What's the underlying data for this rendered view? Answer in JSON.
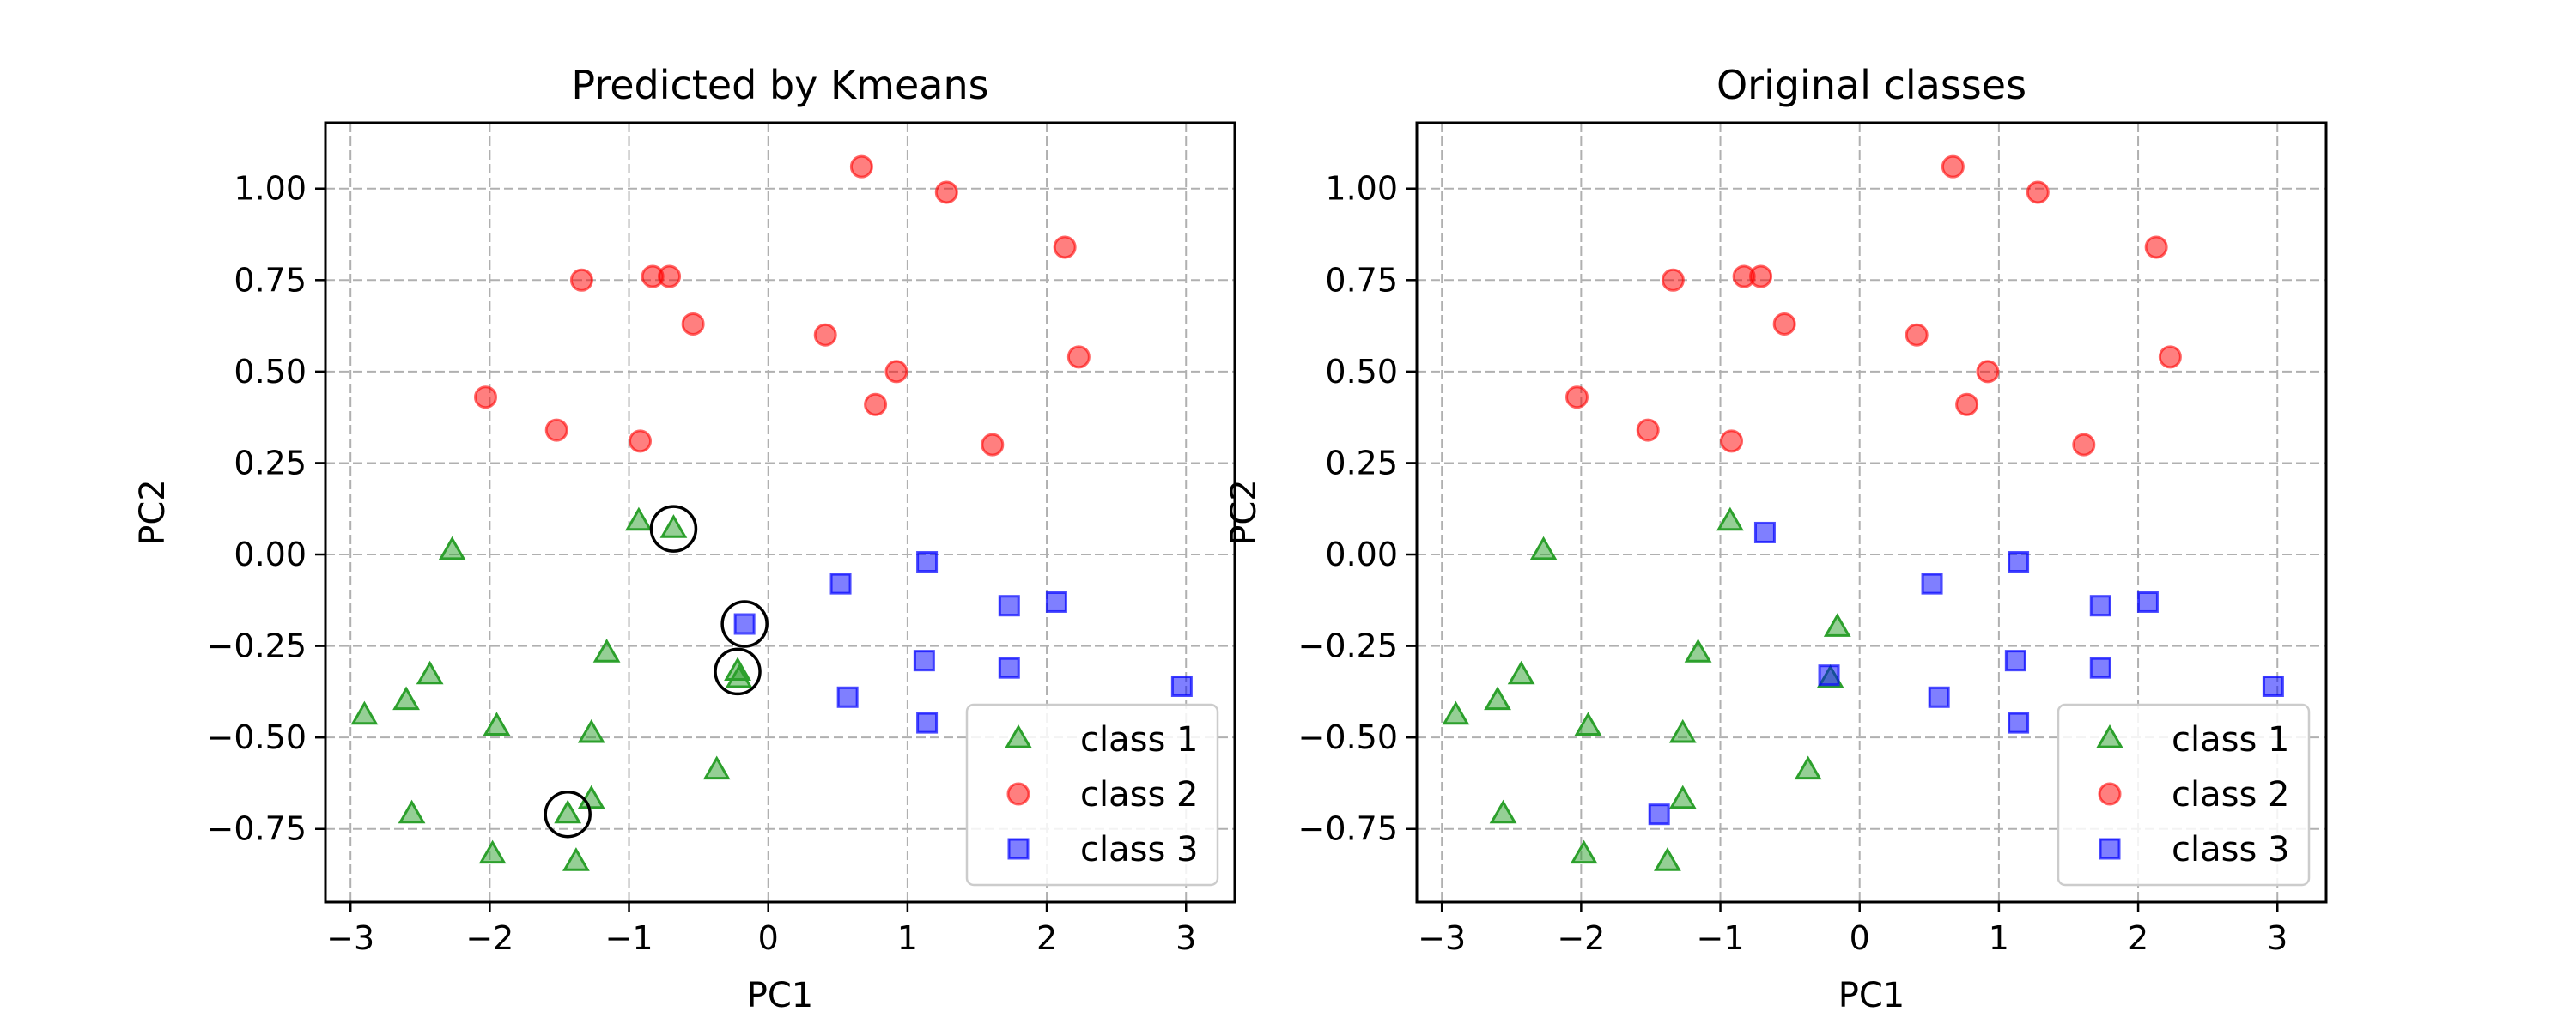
{
  "chart_data": [
    {
      "type": "scatter",
      "title": "Predicted by Kmeans",
      "xlabel": "PC1",
      "ylabel": "PC2",
      "xlim": [
        -3.18,
        3.35
      ],
      "ylim": [
        -0.95,
        1.18
      ],
      "xticks": [
        -3,
        -2,
        -1,
        0,
        1,
        2,
        3
      ],
      "xtick_labels": [
        "−3",
        "−2",
        "−1",
        "0",
        "1",
        "2",
        "3"
      ],
      "yticks": [
        -0.75,
        -0.5,
        -0.25,
        0.0,
        0.25,
        0.5,
        0.75,
        1.0
      ],
      "ytick_labels": [
        "−0.75",
        "−0.50",
        "−0.25",
        "0.00",
        "0.25",
        "0.50",
        "0.75",
        "1.00"
      ],
      "grid": true,
      "legend_position": "bottom-right",
      "series": [
        {
          "name": "class 1",
          "marker": "triangle",
          "color": "#2ca02c",
          "points": [
            [
              -0.93,
              0.09
            ],
            [
              -0.68,
              0.07
            ],
            [
              -2.27,
              0.01
            ],
            [
              -2.9,
              -0.44
            ],
            [
              -2.6,
              -0.4
            ],
            [
              -2.43,
              -0.33
            ],
            [
              -1.95,
              -0.47
            ],
            [
              -1.16,
              -0.27
            ],
            [
              -1.27,
              -0.49
            ],
            [
              -0.22,
              -0.32
            ],
            [
              -0.21,
              -0.34
            ],
            [
              -0.37,
              -0.59
            ],
            [
              -1.27,
              -0.67
            ],
            [
              -1.44,
              -0.71
            ],
            [
              -2.56,
              -0.71
            ],
            [
              -1.98,
              -0.82
            ],
            [
              -1.38,
              -0.84
            ]
          ]
        },
        {
          "name": "class 2",
          "marker": "circle",
          "color": "#ff0000",
          "points": [
            [
              0.67,
              1.06
            ],
            [
              1.28,
              0.99
            ],
            [
              2.13,
              0.84
            ],
            [
              -1.34,
              0.75
            ],
            [
              -0.83,
              0.76
            ],
            [
              -0.71,
              0.76
            ],
            [
              -0.54,
              0.63
            ],
            [
              0.41,
              0.6
            ],
            [
              0.92,
              0.5
            ],
            [
              2.23,
              0.54
            ],
            [
              -2.03,
              0.43
            ],
            [
              0.77,
              0.41
            ],
            [
              -1.52,
              0.34
            ],
            [
              -0.92,
              0.31
            ],
            [
              1.61,
              0.3
            ]
          ]
        },
        {
          "name": "class 3",
          "marker": "square",
          "color": "#0000ff",
          "points": [
            [
              1.14,
              -0.02
            ],
            [
              0.52,
              -0.08
            ],
            [
              1.73,
              -0.14
            ],
            [
              2.07,
              -0.13
            ],
            [
              -0.17,
              -0.19
            ],
            [
              1.12,
              -0.29
            ],
            [
              1.73,
              -0.31
            ],
            [
              0.57,
              -0.39
            ],
            [
              1.14,
              -0.46
            ],
            [
              2.97,
              -0.36
            ]
          ]
        }
      ],
      "highlighted": [
        [
          -0.68,
          0.07
        ],
        [
          -0.17,
          -0.19
        ],
        [
          -0.22,
          -0.32
        ],
        [
          -1.44,
          -0.71
        ]
      ]
    },
    {
      "type": "scatter",
      "title": "Original classes",
      "xlabel": "PC1",
      "ylabel": "PC2",
      "xlim": [
        -3.18,
        3.35
      ],
      "ylim": [
        -0.95,
        1.18
      ],
      "xticks": [
        -3,
        -2,
        -1,
        0,
        1,
        2,
        3
      ],
      "xtick_labels": [
        "−3",
        "−2",
        "−1",
        "0",
        "1",
        "2",
        "3"
      ],
      "yticks": [
        -0.75,
        -0.5,
        -0.25,
        0.0,
        0.25,
        0.5,
        0.75,
        1.0
      ],
      "ytick_labels": [
        "−0.75",
        "−0.50",
        "−0.25",
        "0.00",
        "0.25",
        "0.50",
        "0.75",
        "1.00"
      ],
      "grid": true,
      "legend_position": "bottom-right",
      "series": [
        {
          "name": "class 1",
          "marker": "triangle",
          "color": "#2ca02c",
          "points": [
            [
              -0.93,
              0.09
            ],
            [
              -2.27,
              0.01
            ],
            [
              -0.16,
              -0.2
            ],
            [
              -1.16,
              -0.27
            ],
            [
              -2.9,
              -0.44
            ],
            [
              -2.6,
              -0.4
            ],
            [
              -2.43,
              -0.33
            ],
            [
              -1.95,
              -0.47
            ],
            [
              -1.27,
              -0.49
            ],
            [
              -0.21,
              -0.34
            ],
            [
              -0.37,
              -0.59
            ],
            [
              -1.27,
              -0.67
            ],
            [
              -2.56,
              -0.71
            ],
            [
              -1.98,
              -0.82
            ],
            [
              -1.38,
              -0.84
            ]
          ]
        },
        {
          "name": "class 2",
          "marker": "circle",
          "color": "#ff0000",
          "points": [
            [
              0.67,
              1.06
            ],
            [
              1.28,
              0.99
            ],
            [
              2.13,
              0.84
            ],
            [
              -1.34,
              0.75
            ],
            [
              -0.83,
              0.76
            ],
            [
              -0.71,
              0.76
            ],
            [
              -0.54,
              0.63
            ],
            [
              0.41,
              0.6
            ],
            [
              0.92,
              0.5
            ],
            [
              2.23,
              0.54
            ],
            [
              -2.03,
              0.43
            ],
            [
              0.77,
              0.41
            ],
            [
              -1.52,
              0.34
            ],
            [
              -0.92,
              0.31
            ],
            [
              1.61,
              0.3
            ]
          ]
        },
        {
          "name": "class 3",
          "marker": "square",
          "color": "#0000ff",
          "points": [
            [
              -0.68,
              0.06
            ],
            [
              1.14,
              -0.02
            ],
            [
              0.52,
              -0.08
            ],
            [
              1.73,
              -0.14
            ],
            [
              2.07,
              -0.13
            ],
            [
              1.12,
              -0.29
            ],
            [
              -0.22,
              -0.33
            ],
            [
              1.73,
              -0.31
            ],
            [
              0.57,
              -0.39
            ],
            [
              1.14,
              -0.46
            ],
            [
              2.97,
              -0.36
            ],
            [
              -1.44,
              -0.71
            ]
          ]
        }
      ],
      "highlighted": []
    }
  ]
}
